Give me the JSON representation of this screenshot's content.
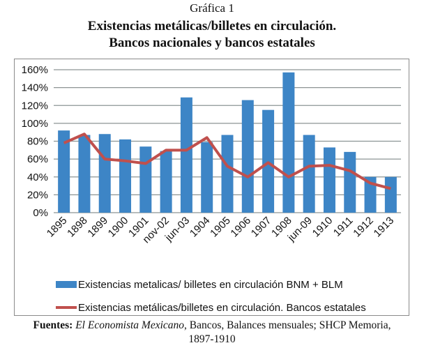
{
  "header": {
    "supertitle": "Gráfica 1",
    "title_line1": "Existencias metálicas/billetes en circulación.",
    "title_line2": "Bancos nacionales y bancos estatales"
  },
  "chart_data": {
    "type": "bar+line",
    "categories": [
      "1895",
      "1898",
      "1899",
      "1900",
      "1901",
      "nov-02",
      "jun-03",
      "1904",
      "1905",
      "1906",
      "1907",
      "1908",
      "jun-09",
      "1910",
      "1911",
      "1912",
      "1913"
    ],
    "yticks": [
      "0%",
      "20%",
      "40%",
      "60%",
      "80%",
      "100%",
      "120%",
      "140%",
      "160%"
    ],
    "ylim": [
      0,
      160
    ],
    "grid": true,
    "legend_position": "bottom",
    "series": [
      {
        "name": "Existencias metalicas/ billetes en circulación BNM + BLM",
        "type": "bar",
        "color": "#3d85c6",
        "values": [
          92,
          87,
          88,
          82,
          74,
          69,
          129,
          79,
          87,
          126,
          115,
          157,
          87,
          73,
          68,
          40,
          40
        ]
      },
      {
        "name": "Existencias metálicas/billetes en circulación. Bancos estatales",
        "type": "line",
        "color": "#c0504d",
        "values": [
          78,
          88,
          60,
          58,
          55,
          70,
          70,
          84,
          52,
          40,
          56,
          40,
          52,
          53,
          47,
          33,
          27
        ]
      }
    ]
  },
  "footer": {
    "label": "Fuentes:",
    "source_italic": "El Economista Mexicano",
    "source_rest": ", Bancos, Balances mensuales; SHCP Memoria,",
    "line2": "1897-1910"
  }
}
